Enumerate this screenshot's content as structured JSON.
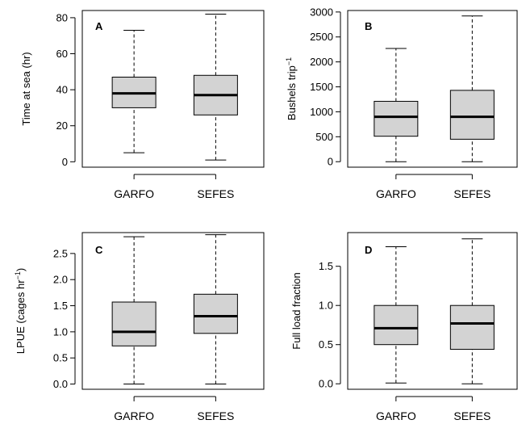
{
  "chart_data": [
    {
      "panel": "A",
      "type": "box",
      "ylabel": "Time at sea (hr)",
      "ylim": [
        -3,
        84
      ],
      "yticks": [
        0,
        20,
        40,
        60,
        80
      ],
      "categories": [
        "GARFO",
        "SEFES"
      ],
      "box_color": "#d3d3d3",
      "boxes": [
        {
          "min": 5,
          "q1": 30,
          "median": 38,
          "q3": 47,
          "max": 73
        },
        {
          "min": 1,
          "q1": 26,
          "median": 37,
          "q3": 48,
          "max": 82
        }
      ]
    },
    {
      "panel": "B",
      "type": "box",
      "ylabel": "Bushels trip",
      "ylabel_sup": "−1",
      "ylim": [
        -110,
        3030
      ],
      "yticks": [
        0,
        500,
        1000,
        1500,
        2000,
        2500,
        3000
      ],
      "categories": [
        "GARFO",
        "SEFES"
      ],
      "box_color": "#d3d3d3",
      "boxes": [
        {
          "min": 0,
          "q1": 510,
          "median": 900,
          "q3": 1210,
          "max": 2270
        },
        {
          "min": 0,
          "q1": 450,
          "median": 900,
          "q3": 1430,
          "max": 2920
        }
      ]
    },
    {
      "panel": "C",
      "type": "box",
      "ylabel": "LPUE (cages hr",
      "ylabel_sup": "−1",
      "ylabel_end": ")",
      "ylim": [
        -0.1,
        2.9
      ],
      "yticks": [
        "0.0",
        "0.5",
        "1.0",
        "1.5",
        "2.0",
        "2.5"
      ],
      "categories": [
        "GARFO",
        "SEFES"
      ],
      "box_color": "#d3d3d3",
      "boxes": [
        {
          "min": 0.0,
          "q1": 0.73,
          "median": 1.0,
          "q3": 1.57,
          "max": 2.82
        },
        {
          "min": 0.0,
          "q1": 0.97,
          "median": 1.3,
          "q3": 1.72,
          "max": 2.86
        }
      ]
    },
    {
      "panel": "D",
      "type": "box",
      "ylabel": "Full load fraction",
      "ylim": [
        -0.07,
        1.93
      ],
      "yticks": [
        "0.0",
        "0.5",
        "1.0",
        "1.5"
      ],
      "categories": [
        "GARFO",
        "SEFES"
      ],
      "box_color": "#d3d3d3",
      "boxes": [
        {
          "min": 0.01,
          "q1": 0.5,
          "median": 0.71,
          "q3": 1.0,
          "max": 1.75
        },
        {
          "min": 0.0,
          "q1": 0.44,
          "median": 0.77,
          "q3": 1.0,
          "max": 1.85
        }
      ]
    }
  ]
}
